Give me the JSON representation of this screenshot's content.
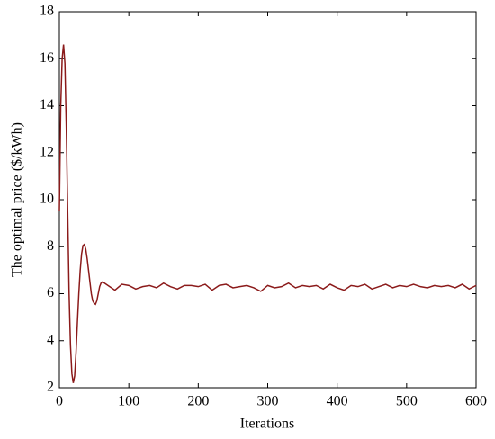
{
  "chart_data": {
    "type": "line",
    "xlabel": "Iterations",
    "ylabel": "The optimal price ($/kWh)",
    "x": [
      0,
      2,
      4,
      6,
      8,
      10,
      12,
      14,
      16,
      18,
      20,
      22,
      24,
      26,
      28,
      30,
      32,
      34,
      36,
      38,
      40,
      42,
      44,
      46,
      48,
      50,
      52,
      54,
      56,
      58,
      60,
      62,
      65,
      70,
      80,
      90,
      100,
      110,
      120,
      130,
      140,
      150,
      160,
      170,
      180,
      190,
      200,
      210,
      220,
      230,
      240,
      250,
      260,
      270,
      280,
      290,
      300,
      310,
      320,
      330,
      340,
      350,
      360,
      370,
      380,
      390,
      400,
      410,
      420,
      430,
      440,
      450,
      460,
      470,
      480,
      490,
      500,
      510,
      520,
      530,
      540,
      550,
      560,
      570,
      580,
      590,
      600
    ],
    "series": [
      {
        "name": "price",
        "color": "#8b1a1a",
        "values": [
          9.5,
          14,
          16,
          16.6,
          15.8,
          13,
          9.5,
          6,
          3.8,
          2.6,
          2.2,
          2.5,
          3.5,
          4.8,
          6.0,
          7.0,
          7.7,
          8.05,
          8.1,
          7.9,
          7.5,
          7.0,
          6.5,
          6.0,
          5.7,
          5.6,
          5.55,
          5.7,
          6.0,
          6.3,
          6.45,
          6.5,
          6.45,
          6.35,
          6.15,
          6.4,
          6.35,
          6.2,
          6.3,
          6.35,
          6.25,
          6.45,
          6.3,
          6.2,
          6.35,
          6.35,
          6.3,
          6.4,
          6.15,
          6.35,
          6.4,
          6.25,
          6.3,
          6.35,
          6.25,
          6.1,
          6.35,
          6.25,
          6.3,
          6.45,
          6.25,
          6.35,
          6.3,
          6.35,
          6.2,
          6.4,
          6.25,
          6.15,
          6.35,
          6.3,
          6.4,
          6.2,
          6.3,
          6.4,
          6.25,
          6.35,
          6.3,
          6.4,
          6.3,
          6.25,
          6.35,
          6.3,
          6.35,
          6.25,
          6.4,
          6.2,
          6.35
        ]
      }
    ],
    "xlim": [
      0,
      600
    ],
    "xticks": [
      0,
      100,
      200,
      300,
      400,
      500,
      600
    ],
    "ylim": [
      2,
      18
    ],
    "yticks": [
      2,
      4,
      6,
      8,
      10,
      12,
      14,
      16,
      18
    ]
  }
}
